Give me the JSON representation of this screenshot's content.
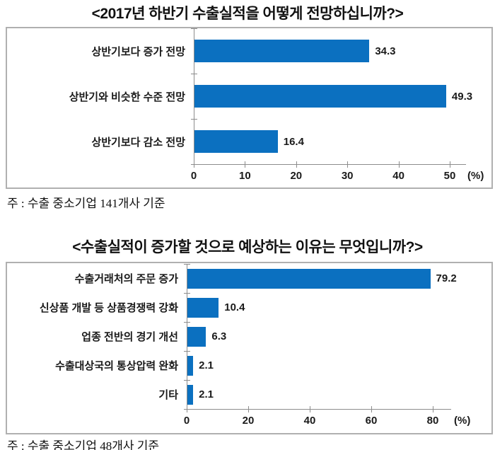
{
  "bar_color": "#0b70c0",
  "chart_data": [
    {
      "type": "bar",
      "orientation": "horizontal",
      "title": "<2017년 하반기 수출실적을 어떻게 전망하십니까?>",
      "categories": [
        "상반기보다 증가 전망",
        "상반기와 비슷한 수준 전망",
        "상반기보다 감소 전망"
      ],
      "values": [
        34.3,
        49.3,
        16.4
      ],
      "value_labels": [
        "34.3",
        "49.3",
        "16.4"
      ],
      "xlabel": "(%)",
      "xlim": [
        0,
        50
      ],
      "xticks": [
        0,
        10,
        20,
        30,
        40,
        50
      ],
      "grid": false,
      "legend": "none",
      "bar_color": "#0b70c0",
      "note": "주 : 수출 중소기업 141개사 기준"
    },
    {
      "type": "bar",
      "orientation": "horizontal",
      "title": "<수출실적이 증가할 것으로 예상하는 이유는 무엇입니까?>",
      "categories": [
        "수출거래처의 주문 증가",
        "신상품 개발 등 상품경쟁력 강화",
        "업종 전반의 경기 개선",
        "수출대상국의 통상압력 완화",
        "기타"
      ],
      "values": [
        79.2,
        10.4,
        6.3,
        2.1,
        2.1
      ],
      "value_labels": [
        "79.2",
        "10.4",
        "6.3",
        "2.1",
        "2.1"
      ],
      "xlabel": "(%)",
      "xlim": [
        0,
        80
      ],
      "xticks": [
        0,
        20,
        40,
        60,
        80
      ],
      "grid": false,
      "legend": "none",
      "bar_color": "#0b70c0",
      "note": "주 : 수출 중소기업 48개사 기준"
    }
  ]
}
